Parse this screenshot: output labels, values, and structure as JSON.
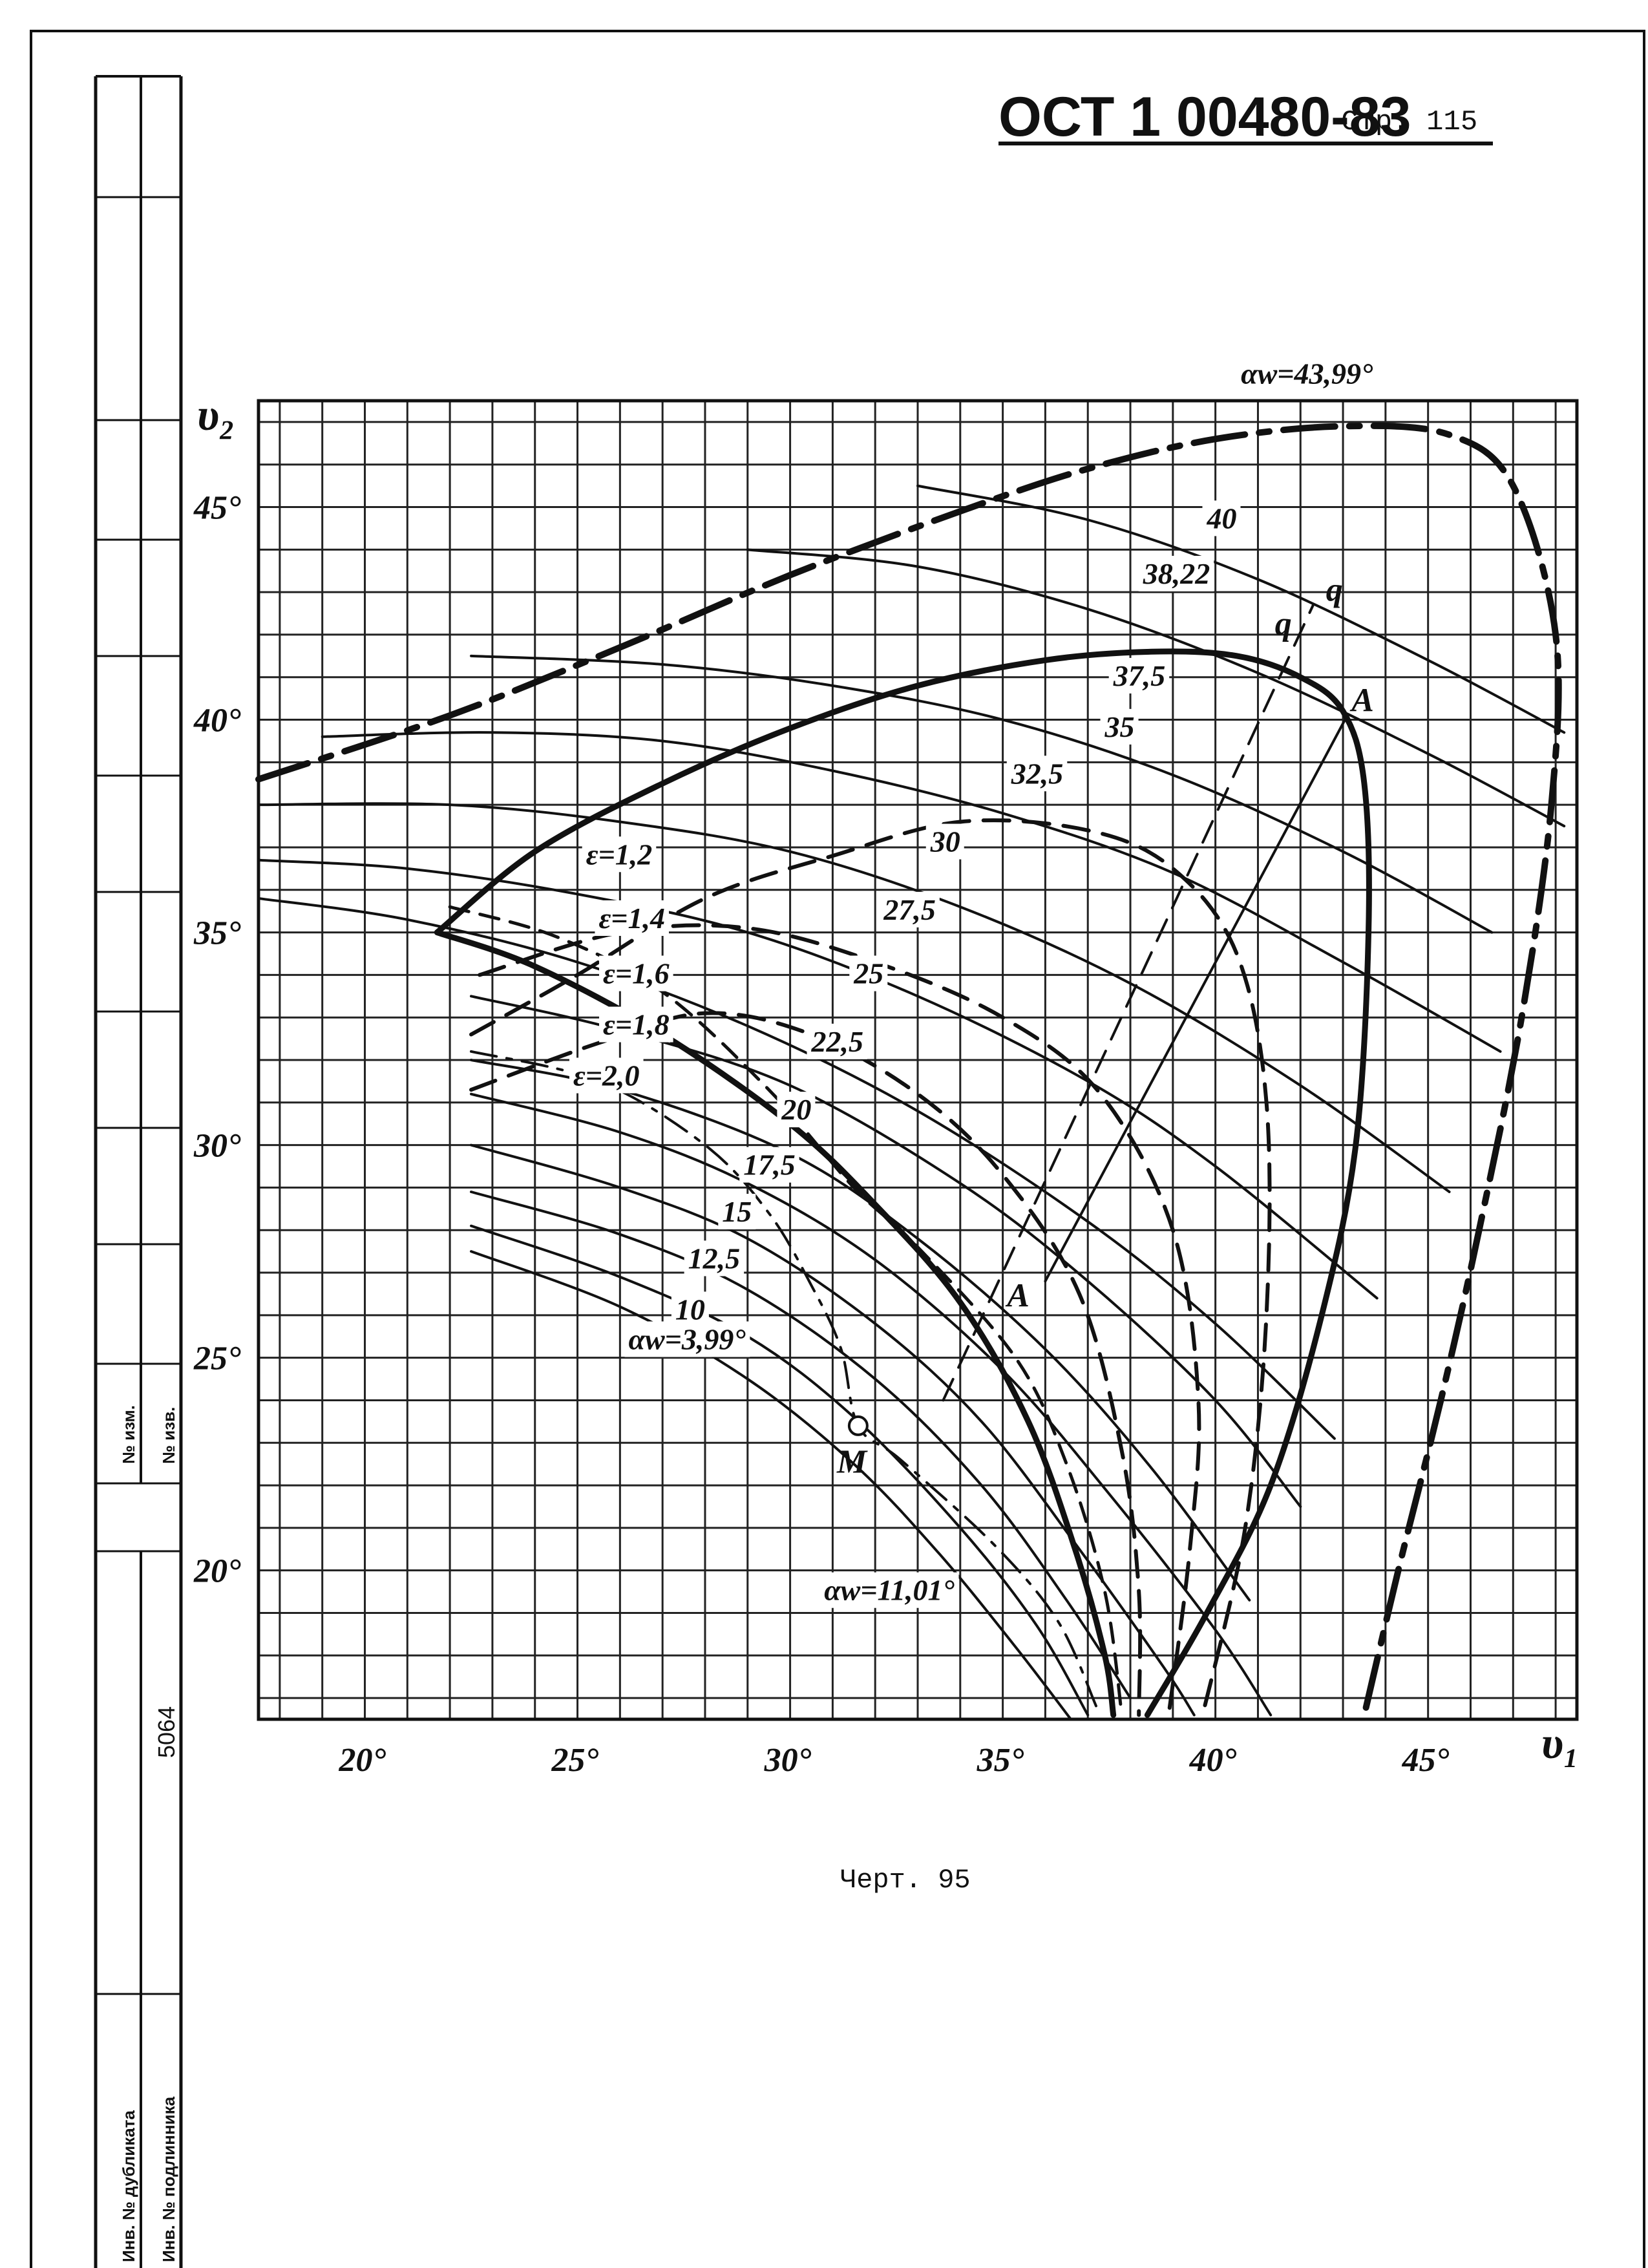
{
  "header": {
    "doc_code": "ОСТ 1 00480-83",
    "page_label": "Стр. 115"
  },
  "caption": "Черт. 95",
  "stamp": {
    "number": "5064",
    "field_1": "№ изм.",
    "field_2": "№ изв.",
    "field_3": "Инв. № дубликата",
    "field_4": "Инв. № подлинника"
  },
  "chart_data": {
    "type": "line",
    "xlabel": "υ₁",
    "ylabel": "υ₂",
    "xlim": [
      17.5,
      48.5
    ],
    "ylim": [
      16.5,
      47.5
    ],
    "x_ticks": [
      "20°",
      "25°",
      "30°",
      "35°",
      "40°",
      "45°"
    ],
    "x_tick_values": [
      20,
      25,
      30,
      35,
      40,
      45
    ],
    "y_ticks": [
      "20°",
      "25°",
      "30°",
      "35°",
      "40°",
      "45°"
    ],
    "y_tick_values": [
      20,
      25,
      30,
      35,
      40,
      45
    ],
    "grid": true,
    "series": [
      {
        "name": "40",
        "style": "thin",
        "points": [
          [
            33,
            45.5
          ],
          [
            37,
            44.7
          ],
          [
            41,
            43.3
          ],
          [
            45,
            41.4
          ],
          [
            48.2,
            39.7
          ]
        ]
      },
      {
        "name": "38,22",
        "style": "thin",
        "points": [
          [
            29,
            44
          ],
          [
            33,
            43.6
          ],
          [
            37,
            42.6
          ],
          [
            41,
            41.1
          ],
          [
            45,
            39.2
          ],
          [
            48.2,
            37.5
          ]
        ]
      },
      {
        "name": "37,5",
        "style": "thin",
        "points": [
          [
            22.5,
            41.5
          ],
          [
            27,
            41.3
          ],
          [
            31,
            40.8
          ],
          [
            35,
            40
          ],
          [
            39,
            38.7
          ],
          [
            43,
            36.9
          ],
          [
            46.5,
            35
          ]
        ]
      },
      {
        "name": "35",
        "style": "thin",
        "points": [
          [
            19,
            39.6
          ],
          [
            23,
            39.7
          ],
          [
            27,
            39.5
          ],
          [
            31,
            38.8
          ],
          [
            35,
            37.8
          ],
          [
            39,
            36.4
          ],
          [
            43,
            34.3
          ],
          [
            46.7,
            32.2
          ]
        ]
      },
      {
        "name": "32,5",
        "style": "thin",
        "points": [
          [
            17.5,
            38
          ],
          [
            22,
            38
          ],
          [
            26,
            37.6
          ],
          [
            30,
            36.9
          ],
          [
            34,
            35.6
          ],
          [
            38,
            33.8
          ],
          [
            42,
            31.4
          ],
          [
            45.5,
            28.9
          ]
        ]
      },
      {
        "name": "30",
        "style": "thin",
        "points": [
          [
            17.5,
            36.7
          ],
          [
            21,
            36.5
          ],
          [
            25,
            35.9
          ],
          [
            29,
            35
          ],
          [
            33,
            33.5
          ],
          [
            37,
            31.5
          ],
          [
            40,
            29.5
          ],
          [
            43.8,
            26.4
          ]
        ]
      },
      {
        "name": "27,5",
        "style": "thin",
        "points": [
          [
            17.5,
            35.8
          ],
          [
            21,
            35.3
          ],
          [
            25,
            34.3
          ],
          [
            29,
            32.8
          ],
          [
            33,
            30.8
          ],
          [
            37,
            28.2
          ],
          [
            40,
            25.8
          ],
          [
            42.8,
            23.1
          ]
        ]
      },
      {
        "name": "25",
        "style": "thin",
        "points": [
          [
            22.5,
            33.5
          ],
          [
            26,
            32.7
          ],
          [
            30,
            31.4
          ],
          [
            34,
            29.1
          ],
          [
            37,
            26.8
          ],
          [
            40,
            24
          ],
          [
            42,
            21.5
          ]
        ]
      },
      {
        "name": "22,5",
        "style": "thin",
        "points": [
          [
            22.5,
            32
          ],
          [
            26,
            31.3
          ],
          [
            30,
            29.8
          ],
          [
            33,
            27.8
          ],
          [
            36,
            25.2
          ],
          [
            38.5,
            22.4
          ],
          [
            40.8,
            19.3
          ]
        ]
      },
      {
        "name": "20",
        "style": "thin",
        "points": [
          [
            22.5,
            31.2
          ],
          [
            26,
            30.3
          ],
          [
            29,
            29.1
          ],
          [
            32,
            27.3
          ],
          [
            35,
            24.7
          ],
          [
            37.5,
            21.8
          ],
          [
            40,
            18.6
          ],
          [
            41.3,
            16.6
          ]
        ]
      },
      {
        "name": "17,5",
        "style": "thin",
        "points": [
          [
            22.5,
            30
          ],
          [
            26,
            29
          ],
          [
            29,
            27.8
          ],
          [
            32,
            25.8
          ],
          [
            34.5,
            23.5
          ],
          [
            36.8,
            20.5
          ],
          [
            38.8,
            17.7
          ],
          [
            39.5,
            16.6
          ]
        ]
      },
      {
        "name": "15",
        "style": "thin",
        "points": [
          [
            22.5,
            28.9
          ],
          [
            26,
            27.9
          ],
          [
            29,
            26.6
          ],
          [
            32,
            24.5
          ],
          [
            34.5,
            22
          ],
          [
            36.5,
            19.3
          ],
          [
            38,
            17
          ]
        ]
      },
      {
        "name": "12,5",
        "style": "thin",
        "points": [
          [
            22.5,
            28.1
          ],
          [
            26,
            26.9
          ],
          [
            29,
            25.5
          ],
          [
            31.5,
            23.6
          ],
          [
            34,
            21
          ],
          [
            35.8,
            18.7
          ],
          [
            37,
            16.6
          ]
        ]
      },
      {
        "name": "10",
        "style": "thin",
        "points": [
          [
            22.5,
            27.5
          ],
          [
            26,
            26.2
          ],
          [
            29,
            24.5
          ],
          [
            31.5,
            22.5
          ],
          [
            33.5,
            20.4
          ],
          [
            35.3,
            18.2
          ],
          [
            36.6,
            16.5
          ]
        ]
      },
      {
        "name": "ε=1,2",
        "style": "bold",
        "points": [
          [
            21.7,
            35
          ],
          [
            24,
            36.9
          ],
          [
            27,
            38.5
          ],
          [
            30,
            39.8
          ],
          [
            33,
            40.8
          ],
          [
            36,
            41.4
          ],
          [
            38.5,
            41.6
          ],
          [
            40.5,
            41.5
          ],
          [
            42,
            41
          ],
          [
            43,
            40.2
          ],
          [
            43.5,
            38.5
          ],
          [
            43.6,
            35
          ],
          [
            43.3,
            30
          ],
          [
            42.5,
            26
          ],
          [
            41.3,
            22
          ],
          [
            39.8,
            19
          ],
          [
            38.4,
            16.6
          ]
        ]
      },
      {
        "name": "ε=1,4",
        "style": "bold",
        "points": [
          [
            21.7,
            35
          ],
          [
            24,
            34.2
          ],
          [
            27,
            32.6
          ],
          [
            30,
            30.5
          ],
          [
            32,
            28.6
          ],
          [
            34,
            26.3
          ],
          [
            35.6,
            23.5
          ],
          [
            36.7,
            20.5
          ],
          [
            37.4,
            18
          ],
          [
            37.6,
            16.6
          ]
        ]
      },
      {
        "name": "ε=1,6",
        "style": "dashed",
        "points": [
          [
            22.5,
            32.6
          ],
          [
            25,
            34
          ],
          [
            28,
            35.8
          ],
          [
            31,
            36.8
          ],
          [
            34,
            37.6
          ],
          [
            37,
            37.4
          ],
          [
            39,
            36.5
          ],
          [
            40.5,
            34.5
          ],
          [
            41.2,
            31
          ],
          [
            41.2,
            26
          ],
          [
            40.7,
            21
          ],
          [
            39.7,
            16.6
          ]
        ]
      },
      {
        "name": "ε=1,8",
        "style": "dashed",
        "points": [
          [
            22.7,
            34
          ],
          [
            26,
            35
          ],
          [
            29,
            35.1
          ],
          [
            32,
            34.3
          ],
          [
            35,
            33
          ],
          [
            37.3,
            31.2
          ],
          [
            39,
            28
          ],
          [
            39.6,
            24
          ],
          [
            39.4,
            20.5
          ],
          [
            38.9,
            16.6
          ]
        ]
      },
      {
        "name": "ε=2,0",
        "style": "dashed",
        "points": [
          [
            22.5,
            31.3
          ],
          [
            25.5,
            32.4
          ],
          [
            28,
            33.1
          ],
          [
            30.5,
            32.6
          ],
          [
            33,
            31.2
          ],
          [
            35,
            29.3
          ],
          [
            36.8,
            26.5
          ],
          [
            37.8,
            22.8
          ],
          [
            38.2,
            19.5
          ],
          [
            38.2,
            16.6
          ]
        ]
      },
      {
        "name": "αw=43,99°",
        "style": "bold-dashdot",
        "points": [
          [
            17.5,
            38.6
          ],
          [
            22,
            40.1
          ],
          [
            26,
            41.7
          ],
          [
            30,
            43.4
          ],
          [
            34,
            44.9
          ],
          [
            37,
            45.9
          ],
          [
            40,
            46.6
          ],
          [
            43,
            46.9
          ],
          [
            45.5,
            46.7
          ],
          [
            47,
            45.5
          ],
          [
            48,
            42
          ],
          [
            47.9,
            38
          ],
          [
            47.2,
            33
          ],
          [
            46.2,
            28
          ],
          [
            45.3,
            24
          ],
          [
            44.3,
            20
          ],
          [
            43.5,
            16.6
          ]
        ]
      },
      {
        "name": "αw=11,01°",
        "style": "dash",
        "points": [
          [
            22,
            35.6
          ],
          [
            24.5,
            34.9
          ],
          [
            27,
            33.6
          ],
          [
            29.5,
            31.3
          ],
          [
            31.5,
            29
          ],
          [
            33,
            27.6
          ],
          [
            35.3,
            25
          ],
          [
            36.5,
            22.5
          ],
          [
            37.4,
            19.5
          ],
          [
            37.8,
            16.6
          ]
        ]
      },
      {
        "name": "αw=3,99°",
        "style": "dashdot",
        "points": [
          [
            22.5,
            32.2
          ],
          [
            25.5,
            31.5
          ],
          [
            28,
            30
          ],
          [
            29.5,
            28.4
          ],
          [
            30.5,
            26.7
          ],
          [
            31.2,
            25.2
          ],
          [
            31.6,
            23.4
          ],
          [
            32.6,
            22.6
          ],
          [
            34.8,
            20.6
          ],
          [
            36.3,
            18.8
          ],
          [
            37.2,
            16.8
          ]
        ]
      },
      {
        "name": "A-A",
        "style": "thin-straight",
        "points": [
          [
            36,
            26.8
          ],
          [
            43.1,
            40.1
          ]
        ]
      },
      {
        "name": "q-q",
        "style": "dash-straight",
        "points": [
          [
            33.6,
            24
          ],
          [
            42.3,
            42.7
          ]
        ]
      }
    ],
    "annotations": [
      {
        "text": "A",
        "x": 43.2,
        "y": 40.2
      },
      {
        "text": "A",
        "x": 35.1,
        "y": 26.2
      },
      {
        "text": "q",
        "x": 41.4,
        "y": 42
      },
      {
        "text": "q",
        "x": 42.6,
        "y": 42.8
      },
      {
        "text": "M",
        "x": 31.1,
        "y": 22.3
      }
    ],
    "point_M": {
      "x": 31.6,
      "y": 23.4
    }
  }
}
